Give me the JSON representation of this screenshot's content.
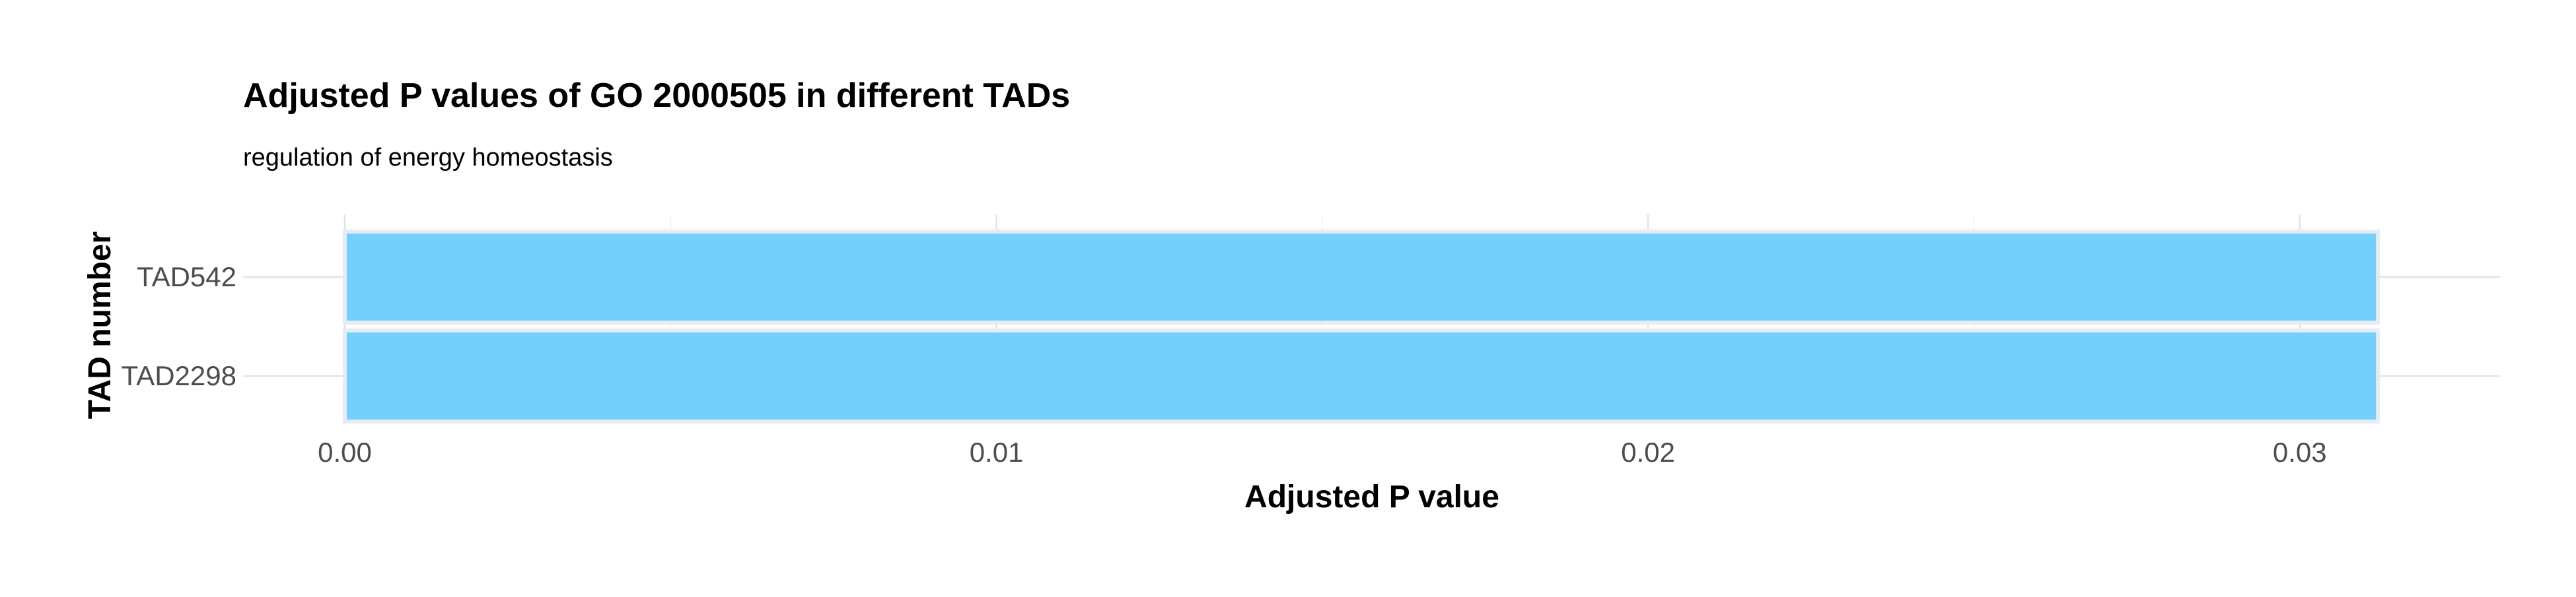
{
  "chart_data": {
    "type": "bar",
    "orientation": "horizontal",
    "title": "Adjusted P values of GO 2000505 in different TADs",
    "subtitle": "regulation of energy homeostasis",
    "xlabel": "Adjusted P value",
    "ylabel": "TAD number",
    "categories": [
      "TAD542",
      "TAD2298"
    ],
    "values": [
      0.0312,
      0.0312
    ],
    "xlim": [
      0,
      0.0328
    ],
    "x_ticks": [
      0.0,
      0.01,
      0.02,
      0.03
    ],
    "x_tick_labels": [
      "0.00",
      "0.01",
      "0.02",
      "0.03"
    ],
    "grid": true,
    "bar_color": "#74D0FB",
    "bar_edge_color": "#E6ECF3",
    "grid_color": "#E3E3E3",
    "text_color": "#000000",
    "tick_label_color": "#4D4D4D"
  }
}
